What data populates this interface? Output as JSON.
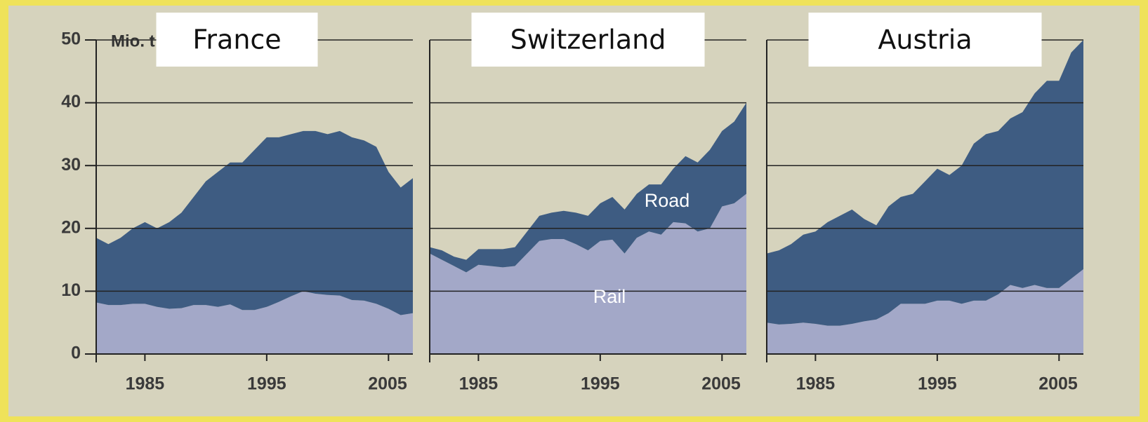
{
  "chart_data": [
    {
      "type": "area",
      "title": "France",
      "annotations": [
        "Mio. t"
      ],
      "show_ytick_labels": true,
      "x": [
        1981,
        1982,
        1983,
        1984,
        1985,
        1986,
        1987,
        1988,
        1989,
        1990,
        1991,
        1992,
        1993,
        1994,
        1995,
        1996,
        1997,
        1998,
        1999,
        2000,
        2001,
        2002,
        2003,
        2004,
        2005,
        2006,
        2007
      ],
      "series": [
        {
          "color": "#a3a8c8",
          "values": [
            8.2,
            7.8,
            7.8,
            8,
            8,
            7.5,
            7.2,
            7.3,
            7.8,
            7.8,
            7.5,
            7.9,
            7,
            7,
            7.5,
            8.3,
            9.2,
            10,
            9.6,
            9.4,
            9.3,
            8.6,
            8.5,
            8,
            7.2,
            6.2,
            6.5
          ]
        },
        {
          "color": "#3e5c82",
          "values": [
            10.3,
            9.7,
            10.7,
            12,
            13,
            12.5,
            13.8,
            15.2,
            17.2,
            19.7,
            21.5,
            22.6,
            23.5,
            25.5,
            27,
            26.2,
            25.8,
            25.5,
            25.9,
            25.6,
            26.2,
            25.9,
            25.5,
            25,
            21.8,
            20.3,
            21.5
          ]
        }
      ],
      "xlim": [
        1981,
        2007
      ],
      "xticks": [
        1985,
        1995,
        2005
      ],
      "ylim": [
        0,
        50
      ],
      "yticks": [
        0,
        10,
        20,
        30,
        40,
        50
      ],
      "grid": true
    },
    {
      "type": "area",
      "title": "Switzerland",
      "annotations": [],
      "show_ytick_labels": false,
      "x": [
        1981,
        1982,
        1983,
        1984,
        1985,
        1986,
        1987,
        1988,
        1989,
        1990,
        1991,
        1992,
        1993,
        1994,
        1995,
        1996,
        1997,
        1998,
        1999,
        2000,
        2001,
        2002,
        2003,
        2004,
        2005,
        2006,
        2007
      ],
      "series": [
        {
          "name": "Rail",
          "color": "#a3a8c8",
          "values": [
            16,
            15,
            14,
            13,
            14.2,
            14,
            13.8,
            14,
            16,
            18,
            18.3,
            18.3,
            17.5,
            16.5,
            18,
            18.2,
            16,
            18.5,
            19.5,
            19,
            21,
            20.8,
            19.5,
            20,
            23.5,
            24,
            25.5
          ]
        },
        {
          "name": "Road",
          "color": "#3e5c82",
          "values": [
            1,
            1.5,
            1.5,
            2,
            2.5,
            2.7,
            2.9,
            3,
            3.5,
            4,
            4.2,
            4.5,
            5,
            5.5,
            6,
            6.8,
            7,
            7,
            7.5,
            8,
            8.5,
            10.7,
            11,
            12.5,
            12,
            13,
            14.5
          ]
        }
      ],
      "xlim": [
        1981,
        2007
      ],
      "xticks": [
        1985,
        1995,
        2005
      ],
      "ylim": [
        0,
        50
      ],
      "yticks": [
        0,
        10,
        20,
        30,
        40,
        50
      ],
      "grid": true
    },
    {
      "type": "area",
      "title": "Austria",
      "annotations": [],
      "show_ytick_labels": false,
      "x": [
        1981,
        1982,
        1983,
        1984,
        1985,
        1986,
        1987,
        1988,
        1989,
        1990,
        1991,
        1992,
        1993,
        1994,
        1995,
        1996,
        1997,
        1998,
        1999,
        2000,
        2001,
        2002,
        2003,
        2004,
        2005,
        2006,
        2007
      ],
      "series": [
        {
          "color": "#a3a8c8",
          "values": [
            5,
            4.7,
            4.8,
            5,
            4.8,
            4.5,
            4.5,
            4.8,
            5.2,
            5.5,
            6.5,
            8,
            8,
            8,
            8.5,
            8.5,
            8,
            8.5,
            8.5,
            9.5,
            11,
            10.5,
            11,
            10.5,
            10.5,
            12,
            13.5
          ]
        },
        {
          "color": "#3e5c82",
          "values": [
            11,
            11.8,
            12.7,
            14,
            14.7,
            16.5,
            17.5,
            18.2,
            16.3,
            15,
            17,
            17,
            17.5,
            19.5,
            21,
            20,
            22,
            25,
            26.5,
            26,
            26.5,
            28,
            30.5,
            33,
            33,
            36,
            36.5
          ]
        }
      ],
      "xlim": [
        1981,
        2007
      ],
      "xticks": [
        1985,
        1995,
        2005
      ],
      "ylim": [
        0,
        50
      ],
      "yticks": [
        0,
        10,
        20,
        30,
        40,
        50
      ],
      "grid": true
    }
  ]
}
